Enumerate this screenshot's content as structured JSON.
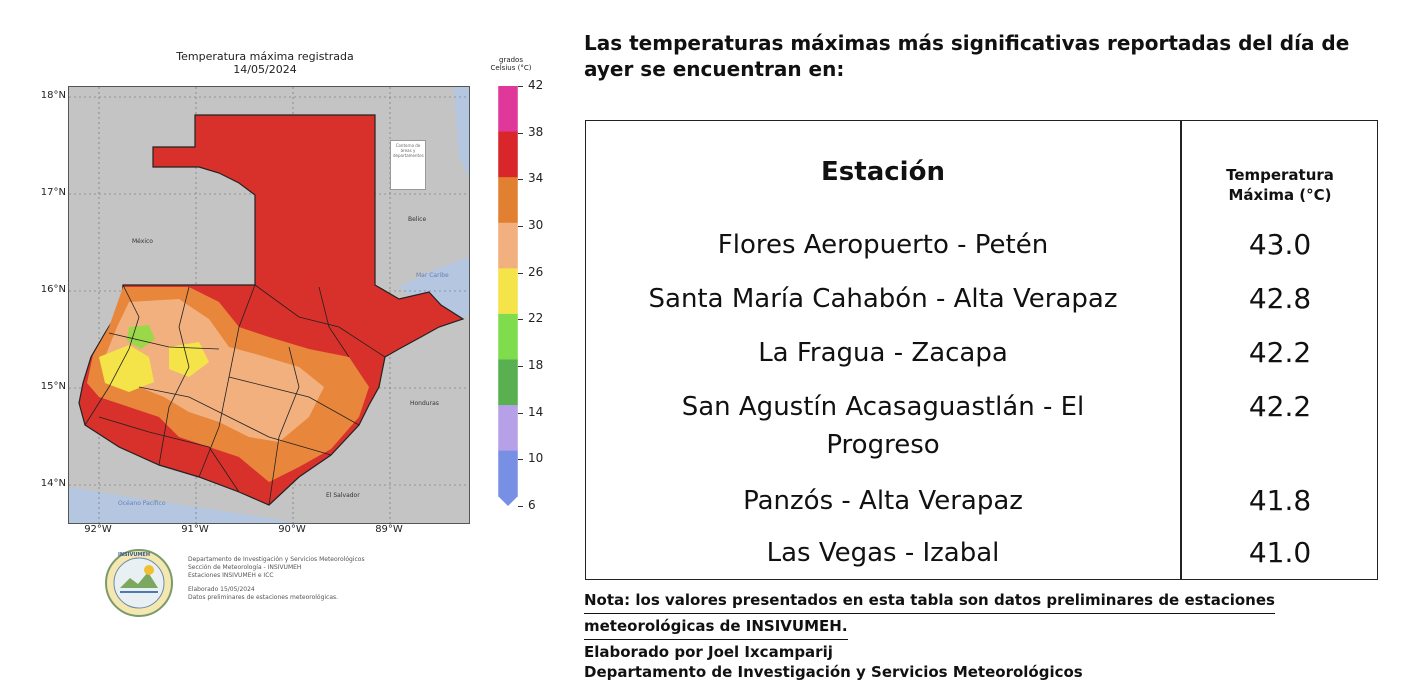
{
  "map": {
    "title": "Temperatura máxima registrada",
    "date": "14/05/2024",
    "lat_labels": [
      "18°N",
      "17°N",
      "16°N",
      "15°N",
      "14°N"
    ],
    "lon_labels": [
      "92°W",
      "91°W",
      "90°W",
      "89°W"
    ],
    "countries": {
      "mexico": "México",
      "belize": "Belice",
      "honduras": "Honduras",
      "el_salvador": "El Salvador",
      "pacific": "Océano Pacífico",
      "caribbean": "Mar Caribe"
    },
    "legend_note": "Contorno de áreas y departamentos",
    "colorbar": {
      "title_line1": "grados",
      "title_line2": "Celsius (°C)",
      "ticks": [
        "42",
        "38",
        "34",
        "30",
        "26",
        "22",
        "18",
        "14",
        "10",
        "6"
      ],
      "colors": [
        "#e0389a",
        "#d8262a",
        "#e08030",
        "#f2b07e",
        "#f4e44a",
        "#7fdc4c",
        "#58b050",
        "#b6a0e8",
        "#7890e4"
      ]
    },
    "credits": {
      "line1": "Departamento de Investigación y Servicios Meteorológicos",
      "line2": "Sección de Meteorología - INSIVUMEH",
      "line3": "Estaciones INSIVUMEH e ICC",
      "line4": "Elaborado 15/05/2024",
      "line5": "Datos preliminares de estaciones meteorológicas."
    },
    "emblem_text": "INSIVUMEH"
  },
  "headline": "Las temperaturas máximas más significativas reportadas del día de ayer se encuentran en:",
  "table": {
    "header_station": "Estación",
    "header_temp_line1": "Temperatura",
    "header_temp_line2": "Máxima (°C)",
    "rows": [
      {
        "station": "Flores Aeropuerto - Petén",
        "temp": "43.0"
      },
      {
        "station": "Santa María Cahabón - Alta Verapaz",
        "temp": "42.8"
      },
      {
        "station": "La Fragua - Zacapa",
        "temp": "42.2"
      },
      {
        "station": "San Agustín Acasaguastlán - El",
        "station_line2": "Progreso",
        "temp": "42.2"
      },
      {
        "station": "Panzós - Alta Verapaz",
        "temp": "41.8"
      },
      {
        "station": "Las Vegas - Izabal",
        "temp": "41.0"
      }
    ]
  },
  "nota": {
    "line1": "Nota: los valores presentados en esta tabla son datos preliminares de estaciones",
    "line2": "meteorológicas de INSIVUMEH."
  },
  "elaborado": {
    "line1": "Elaborado por Joel Ixcamparij",
    "line2": "Departamento de Investigación y Servicios Meteorológicos"
  }
}
